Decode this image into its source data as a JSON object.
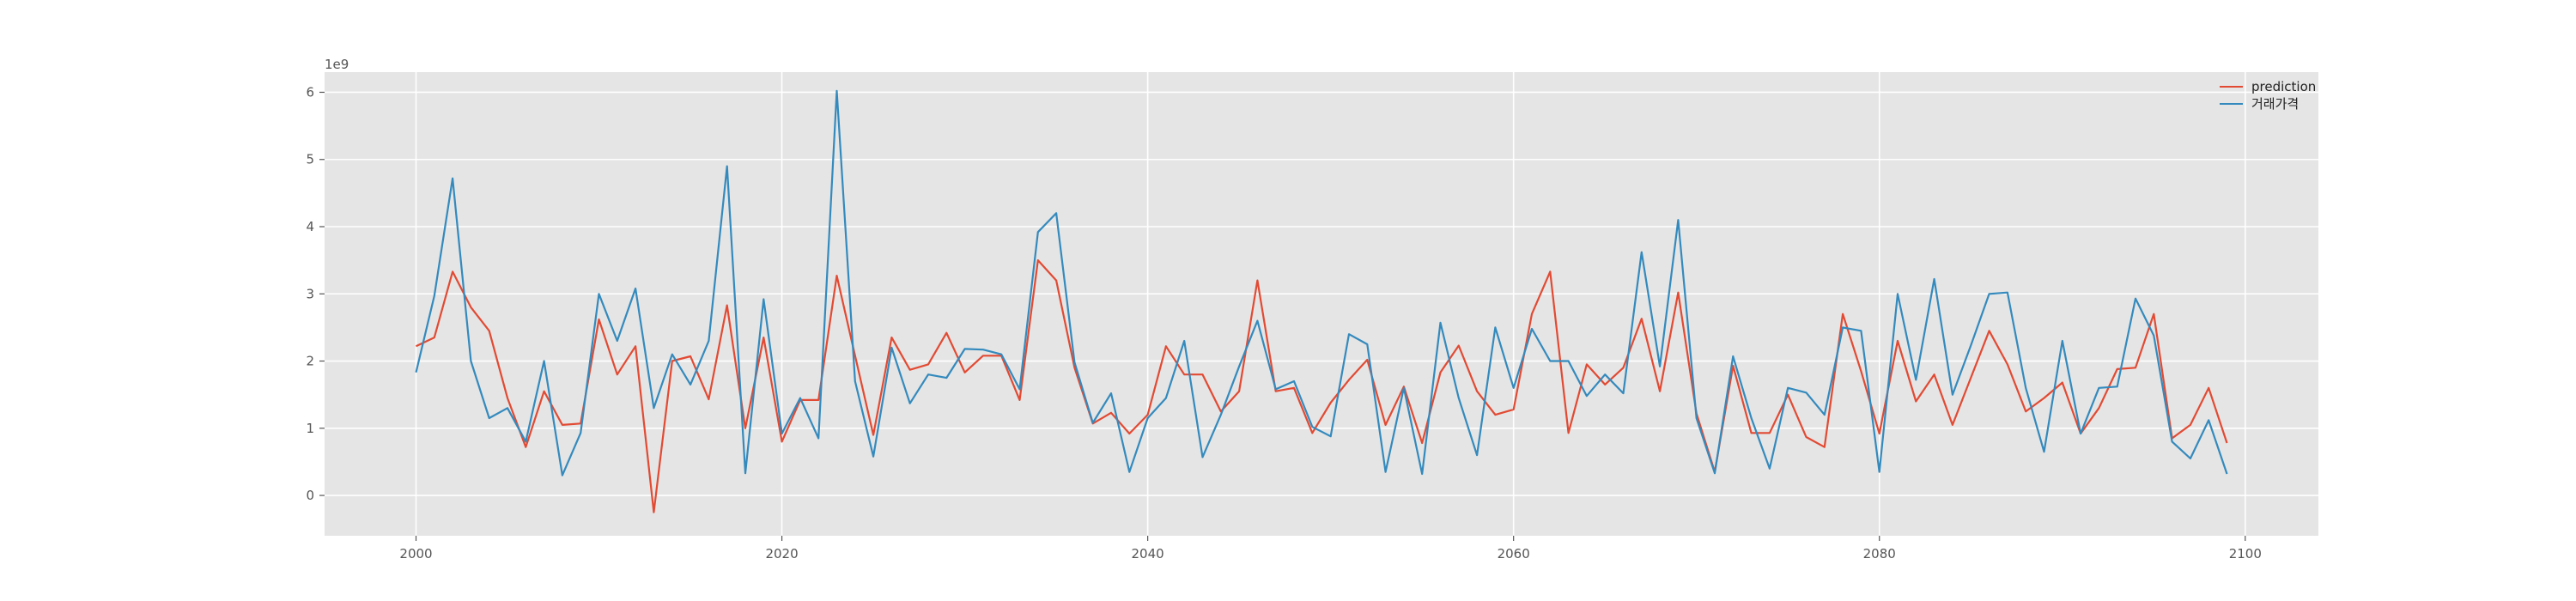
{
  "chart_data": {
    "type": "line",
    "title": "",
    "xlabel": "",
    "ylabel": "",
    "y_offset_label": "1e9",
    "xlim": [
      1995,
      2104
    ],
    "ylim": [
      -0.6,
      6.3
    ],
    "x_ticks": [
      2000,
      2020,
      2040,
      2060,
      2080,
      2100
    ],
    "y_ticks": [
      0,
      1,
      2,
      3,
      4,
      5,
      6
    ],
    "grid": true,
    "legend_position": "top-right",
    "colors": {
      "background": "#e5e5e5",
      "grid": "#ffffff",
      "prediction": "#e24a33",
      "actual": "#348abd"
    },
    "x": [
      2000,
      2001,
      2002,
      2003,
      2004,
      2005,
      2006,
      2007,
      2008,
      2009,
      2010,
      2011,
      2012,
      2013,
      2014,
      2015,
      2016,
      2017,
      2018,
      2019,
      2020,
      2021,
      2022,
      2023,
      2024,
      2025,
      2026,
      2027,
      2028,
      2029,
      2030,
      2031,
      2032,
      2033,
      2034,
      2035,
      2036,
      2037,
      2038,
      2039,
      2040,
      2041,
      2042,
      2043,
      2044,
      2045,
      2046,
      2047,
      2048,
      2049,
      2050,
      2051,
      2052,
      2053,
      2054,
      2055,
      2056,
      2057,
      2058,
      2059,
      2060,
      2061,
      2062,
      2063,
      2064,
      2065,
      2066,
      2067,
      2068,
      2069,
      2070,
      2071,
      2072,
      2073,
      2074,
      2075,
      2076,
      2077,
      2078,
      2079,
      2080,
      2081,
      2082,
      2083,
      2084,
      2085,
      2086,
      2087,
      2088,
      2089,
      2090,
      2091,
      2092,
      2093,
      2094,
      2095,
      2096,
      2097,
      2098,
      2099
    ],
    "series": [
      {
        "name": "prediction",
        "values": [
          2.22,
          2.35,
          3.33,
          2.8,
          2.45,
          1.45,
          0.72,
          1.55,
          1.05,
          1.07,
          2.62,
          1.8,
          2.22,
          -0.25,
          2.0,
          2.07,
          1.43,
          2.83,
          1.0,
          2.35,
          0.8,
          1.42,
          1.42,
          3.27,
          2.08,
          0.9,
          2.35,
          1.87,
          1.95,
          2.42,
          1.83,
          2.08,
          2.08,
          1.42,
          3.5,
          3.2,
          1.9,
          1.07,
          1.23,
          0.92,
          1.2,
          2.22,
          1.8,
          1.8,
          1.25,
          1.55,
          3.2,
          1.55,
          1.6,
          0.93,
          1.38,
          1.72,
          2.02,
          1.05,
          1.62,
          0.78,
          1.83,
          2.23,
          1.55,
          1.2,
          1.28,
          2.7,
          3.33,
          0.93,
          1.95,
          1.65,
          1.9,
          2.63,
          1.55,
          3.02,
          1.22,
          0.35,
          1.93,
          0.93,
          0.93,
          1.5,
          0.87,
          0.72,
          2.7,
          1.85,
          0.92,
          2.3,
          1.4,
          1.8,
          1.05,
          1.75,
          2.45,
          1.95,
          1.25,
          1.45,
          1.68,
          0.92,
          1.3,
          1.88,
          1.9,
          2.7,
          0.85,
          1.05,
          1.6,
          0.78
        ]
      },
      {
        "name": "거래가격",
        "values": [
          1.83,
          2.97,
          4.72,
          2.0,
          1.15,
          1.3,
          0.8,
          2.0,
          0.3,
          0.93,
          3.0,
          2.3,
          3.08,
          1.3,
          2.1,
          1.65,
          2.3,
          4.9,
          0.33,
          2.92,
          0.92,
          1.45,
          0.85,
          6.02,
          1.7,
          0.58,
          2.2,
          1.37,
          1.8,
          1.75,
          2.18,
          2.17,
          2.1,
          1.58,
          3.92,
          4.2,
          1.98,
          1.08,
          1.52,
          0.35,
          1.15,
          1.45,
          2.3,
          0.57,
          1.2,
          1.92,
          2.6,
          1.58,
          1.7,
          1.02,
          0.88,
          2.4,
          2.25,
          0.35,
          1.6,
          0.32,
          2.57,
          1.45,
          0.6,
          2.5,
          1.6,
          2.48,
          2.0,
          2.0,
          1.48,
          1.8,
          1.52,
          3.62,
          1.92,
          4.1,
          1.15,
          0.33,
          2.07,
          1.15,
          0.4,
          1.6,
          1.53,
          1.2,
          2.5,
          2.45,
          0.35,
          3.0,
          1.72,
          3.22,
          1.5,
          2.23,
          3.0,
          3.02,
          1.6,
          0.65,
          2.3,
          0.92,
          1.6,
          1.62,
          2.93,
          2.38,
          0.8,
          0.55,
          1.12,
          0.32
        ]
      }
    ]
  }
}
